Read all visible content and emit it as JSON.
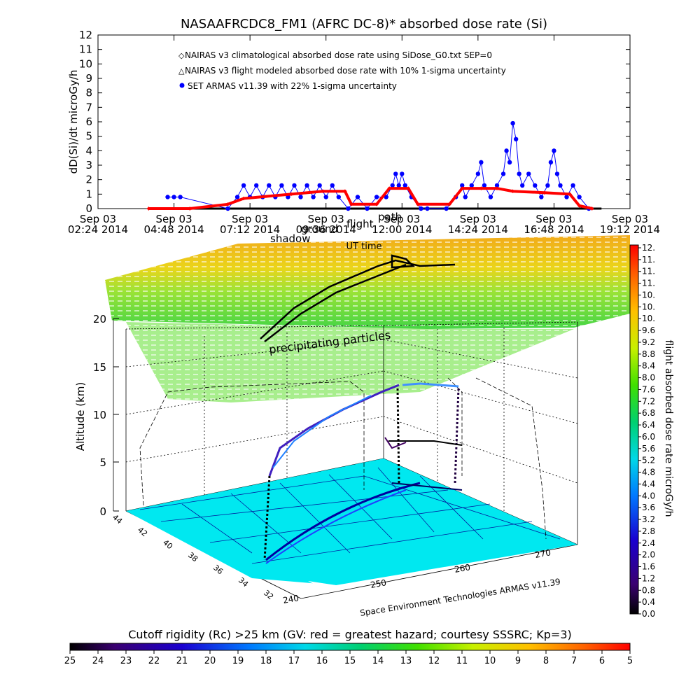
{
  "chart_data": [
    {
      "type": "scatter",
      "title": "NASAAFRCDC8_FM1 (AFRC DC-8)* absorbed dose rate (Si)",
      "xlabel": "UT time",
      "ylabel": "dD(Si)/dt microGy/h",
      "ylim": [
        0,
        12
      ],
      "yticks": [
        "0",
        "1",
        "2",
        "3",
        "4",
        "5",
        "6",
        "7",
        "8",
        "9",
        "10",
        "11",
        "12"
      ],
      "xticks": [
        {
          "day": "Sep 03",
          "time": "02:24 2014"
        },
        {
          "day": "Sep 03",
          "time": "04:48 2014"
        },
        {
          "day": "Sep 03",
          "time": "07:12 2014"
        },
        {
          "day": "Sep 03",
          "time": "09:36 2014"
        },
        {
          "day": "Sep 03",
          "time": "12:00 2014"
        },
        {
          "day": "Sep 03",
          "time": "14:24 2014"
        },
        {
          "day": "Sep 03",
          "time": "16:48 2014"
        },
        {
          "day": "Sep 03",
          "time": "19:12 2014"
        }
      ],
      "xlim_hours": [
        2.4,
        19.2
      ],
      "legend_position": "top-left",
      "overlay_labels": [
        "shadow",
        "ground",
        "flight",
        "path"
      ],
      "series": [
        {
          "name": "NAIRAS v3 climatological absorbed dose rate using SiDose_G0.txt SEP=0",
          "marker": "diamond",
          "color": "#ff0000",
          "points": [
            [
              4.0,
              0.0
            ],
            [
              5.3,
              0.0
            ],
            [
              6.5,
              0.3
            ],
            [
              7.0,
              0.7
            ],
            [
              8.5,
              1.0
            ],
            [
              9.5,
              1.2
            ],
            [
              10.2,
              1.2
            ],
            [
              10.4,
              0.3
            ],
            [
              11.2,
              0.3
            ],
            [
              11.6,
              1.4
            ],
            [
              12.2,
              1.4
            ],
            [
              12.5,
              0.3
            ],
            [
              13.5,
              0.3
            ],
            [
              13.9,
              1.4
            ],
            [
              14.5,
              1.4
            ],
            [
              15.0,
              1.4
            ],
            [
              15.5,
              1.2
            ],
            [
              16.5,
              1.1
            ],
            [
              17.3,
              1.0
            ],
            [
              17.6,
              0.2
            ],
            [
              18.0,
              0.0
            ]
          ]
        },
        {
          "name": "NAIRAS v3 flight modeled absorbed dose rate with 10% 1-sigma uncertainty",
          "marker": "triangle",
          "color": "#000000",
          "points": [
            [
              4.0,
              0.0
            ],
            [
              18.3,
              0.0
            ]
          ]
        },
        {
          "name": "SET ARMAS v11.39 with 22% 1-sigma uncertainty",
          "marker": "circle",
          "color": "#0000ff",
          "points": [
            [
              4.6,
              0.8
            ],
            [
              4.8,
              0.8
            ],
            [
              5.0,
              0.8
            ],
            [
              6.5,
              0.0
            ],
            [
              6.8,
              0.8
            ],
            [
              7.0,
              1.6
            ],
            [
              7.2,
              0.8
            ],
            [
              7.4,
              1.6
            ],
            [
              7.6,
              0.8
            ],
            [
              7.8,
              1.6
            ],
            [
              8.0,
              0.8
            ],
            [
              8.2,
              1.6
            ],
            [
              8.4,
              0.8
            ],
            [
              8.6,
              1.6
            ],
            [
              8.8,
              0.8
            ],
            [
              9.0,
              1.6
            ],
            [
              9.2,
              0.8
            ],
            [
              9.4,
              1.6
            ],
            [
              9.6,
              0.8
            ],
            [
              9.8,
              1.6
            ],
            [
              10.0,
              0.8
            ],
            [
              10.3,
              0.0
            ],
            [
              10.6,
              0.8
            ],
            [
              10.9,
              0.0
            ],
            [
              11.2,
              0.8
            ],
            [
              11.5,
              0.8
            ],
            [
              11.7,
              1.6
            ],
            [
              11.8,
              2.4
            ],
            [
              11.9,
              1.6
            ],
            [
              12.0,
              2.4
            ],
            [
              12.1,
              1.6
            ],
            [
              12.3,
              0.8
            ],
            [
              12.6,
              0.0
            ],
            [
              12.8,
              0.0
            ],
            [
              13.4,
              0.0
            ],
            [
              13.7,
              0.8
            ],
            [
              13.9,
              1.6
            ],
            [
              14.0,
              0.8
            ],
            [
              14.2,
              1.6
            ],
            [
              14.4,
              2.4
            ],
            [
              14.5,
              3.2
            ],
            [
              14.6,
              1.6
            ],
            [
              14.8,
              0.8
            ],
            [
              15.0,
              1.6
            ],
            [
              15.2,
              2.4
            ],
            [
              15.3,
              4.0
            ],
            [
              15.4,
              3.2
            ],
            [
              15.5,
              5.9
            ],
            [
              15.6,
              4.8
            ],
            [
              15.7,
              2.4
            ],
            [
              15.8,
              1.6
            ],
            [
              16.0,
              2.4
            ],
            [
              16.2,
              1.6
            ],
            [
              16.4,
              0.8
            ],
            [
              16.6,
              1.6
            ],
            [
              16.7,
              3.2
            ],
            [
              16.8,
              4.0
            ],
            [
              16.9,
              2.4
            ],
            [
              17.0,
              1.6
            ],
            [
              17.2,
              0.8
            ],
            [
              17.4,
              1.6
            ],
            [
              17.6,
              0.8
            ],
            [
              17.9,
              0.0
            ]
          ]
        }
      ]
    },
    {
      "type": "scatter",
      "zlabel": "Altitude (km)",
      "zticks": [
        "0",
        "5",
        "10",
        "15",
        "20"
      ],
      "lat_ticks": [
        "44",
        "42",
        "40",
        "38",
        "36",
        "34",
        "32"
      ],
      "lon_ticks": [
        "240",
        "250",
        "260",
        "270"
      ],
      "credit": "Space Environment Technologies ARMAS v11.39",
      "annotation": "precipitating particles",
      "colorbar": {
        "label": "flight absorbed dose rate microGy/h",
        "ticks": [
          "12.",
          "11.",
          "11.",
          "11.",
          "10.",
          "10.",
          "10.",
          "9.6",
          "9.2",
          "8.8",
          "8.4",
          "8.0",
          "7.6",
          "7.2",
          "6.8",
          "6.4",
          "6.0",
          "5.6",
          "5.2",
          "4.8",
          "4.4",
          "4.0",
          "3.6",
          "3.2",
          "2.8",
          "2.4",
          "2.0",
          "1.6",
          "1.2",
          "0.8",
          "0.4",
          "0.0"
        ]
      }
    },
    {
      "type": "heatmap",
      "title": "Cutoff rigidity (Rc) >25 km (GV: red = greatest hazard; courtesy SSSRC; Kp=3)",
      "ticks": [
        "25",
        "24",
        "23",
        "22",
        "21",
        "20",
        "19",
        "18",
        "17",
        "16",
        "15",
        "14",
        "13",
        "12",
        "11",
        "10",
        "9",
        "8",
        "7",
        "6",
        "5"
      ]
    }
  ]
}
